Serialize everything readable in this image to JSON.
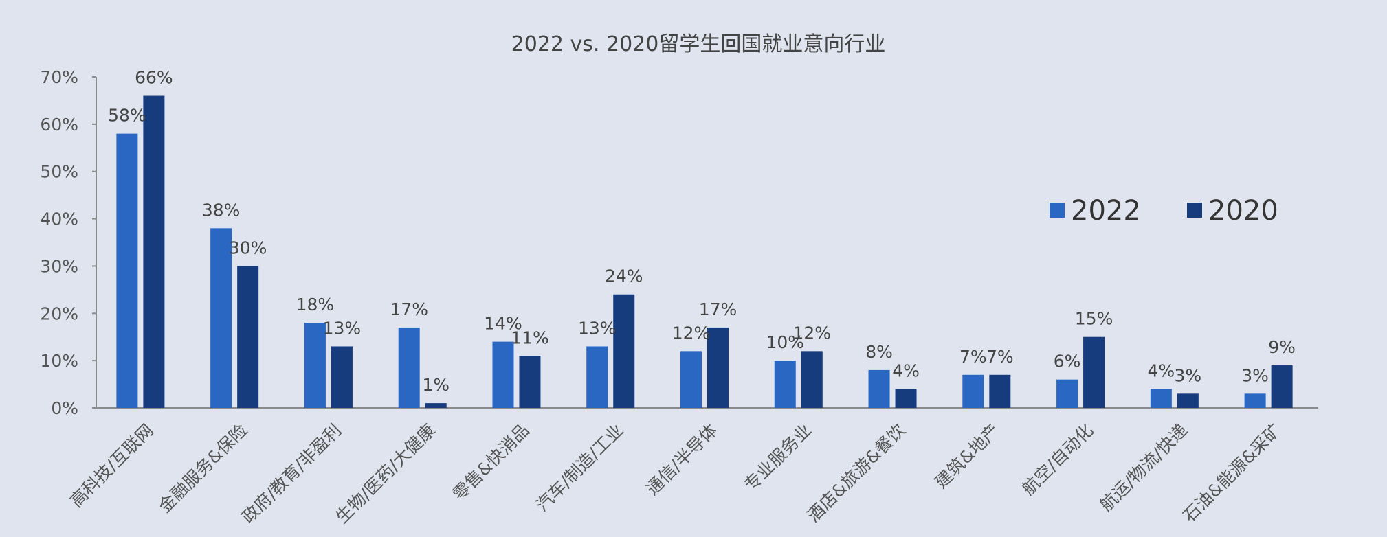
{
  "chart_data": {
    "type": "bar",
    "title": "2022 vs. 2020留学生回国就业意向行业",
    "xlabel": "",
    "ylabel": "",
    "ylim": [
      0,
      70
    ],
    "ytick_values": [
      0,
      10,
      20,
      30,
      40,
      50,
      60,
      70
    ],
    "ytick_labels": [
      "0%",
      "10%",
      "20%",
      "30%",
      "40%",
      "50%",
      "60%",
      "70%"
    ],
    "grid": false,
    "legend_position": "right",
    "categories": [
      "高科技/互联网",
      "金融服务&保险",
      "政府/教育/非盈利",
      "生物/医药/大健康",
      "零售&快消品",
      "汽车/制造/工业",
      "通信/半导体",
      "专业服务业",
      "酒店&旅游&餐饮",
      "建筑&地产",
      "航空/自动化",
      "航运/物流/快递",
      "石油&能源&采矿"
    ],
    "series": [
      {
        "name": "2022",
        "color": "#2a67c3",
        "values": [
          58,
          38,
          18,
          17,
          14,
          13,
          12,
          10,
          8,
          7,
          6,
          4,
          3
        ],
        "labels": [
          "58%",
          "38%",
          "18%",
          "17%",
          "14%",
          "13%",
          "12%",
          "10%",
          "8%",
          "7%",
          "6%",
          "4%",
          "3%"
        ]
      },
      {
        "name": "2020",
        "color": "#163c7e",
        "values": [
          66,
          30,
          13,
          1,
          11,
          24,
          17,
          12,
          4,
          7,
          15,
          3,
          9
        ],
        "labels": [
          "66%",
          "30%",
          "13%",
          "1%",
          "11%",
          "24%",
          "17%",
          "12%",
          "4%",
          "7%",
          "15%",
          "3%",
          "9%"
        ]
      }
    ]
  }
}
